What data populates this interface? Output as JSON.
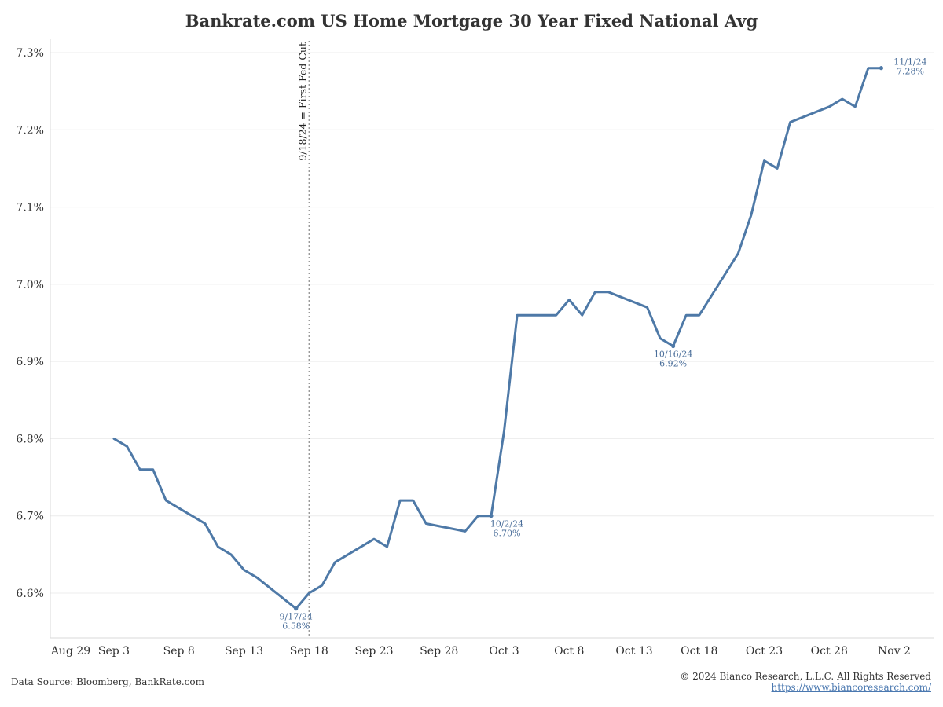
{
  "chart_data": {
    "type": "line",
    "title": "Bankrate.com US Home Mortgage 30 Year Fixed National Avg",
    "xlabel": "",
    "ylabel": "",
    "x_axis": {
      "ticks": [
        "Aug 29",
        "Sep 3",
        "Sep 8",
        "Sep 13",
        "Sep 18",
        "Sep 23",
        "Sep 28",
        "Oct 3",
        "Oct 8",
        "Oct 13",
        "Oct 18",
        "Oct 23",
        "Oct 28",
        "Nov 2"
      ]
    },
    "y_axis": {
      "ylim": [
        6.54,
        7.33
      ],
      "ticks": [
        6.6,
        6.7,
        6.8,
        6.9,
        7.0,
        7.1,
        7.2,
        7.3
      ],
      "tick_labels": [
        "6.6%",
        "6.7%",
        "6.8%",
        "6.9%",
        "7.0%",
        "7.1%",
        "7.2%",
        "7.3%"
      ]
    },
    "grid": "horizontal",
    "series": [
      {
        "color": "#4e79a7",
        "x": [
          "2024-09-03",
          "2024-09-04",
          "2024-09-05",
          "2024-09-06",
          "2024-09-07",
          "2024-09-10",
          "2024-09-11",
          "2024-09-12",
          "2024-09-13",
          "2024-09-14",
          "2024-09-17",
          "2024-09-18",
          "2024-09-19",
          "2024-09-20",
          "2024-09-23",
          "2024-09-24",
          "2024-09-25",
          "2024-09-26",
          "2024-09-27",
          "2024-09-30",
          "2024-10-01",
          "2024-10-02",
          "2024-10-03",
          "2024-10-04",
          "2024-10-07",
          "2024-10-08",
          "2024-10-09",
          "2024-10-10",
          "2024-10-11",
          "2024-10-14",
          "2024-10-15",
          "2024-10-16",
          "2024-10-17",
          "2024-10-18",
          "2024-10-21",
          "2024-10-22",
          "2024-10-23",
          "2024-10-24",
          "2024-10-25",
          "2024-10-28",
          "2024-10-29",
          "2024-10-30",
          "2024-10-31",
          "2024-11-01"
        ],
        "values": [
          6.8,
          6.79,
          6.76,
          6.76,
          6.72,
          6.69,
          6.66,
          6.65,
          6.63,
          6.62,
          6.58,
          6.6,
          6.61,
          6.64,
          6.67,
          6.66,
          6.72,
          6.72,
          6.69,
          6.68,
          6.7,
          6.7,
          6.81,
          6.96,
          6.96,
          6.98,
          6.96,
          6.99,
          6.99,
          6.97,
          6.93,
          6.92,
          6.96,
          6.96,
          7.04,
          7.09,
          7.16,
          7.15,
          7.21,
          7.23,
          7.24,
          7.23,
          7.28,
          7.28
        ]
      }
    ],
    "annotations": [
      {
        "date": "9/17/24",
        "value": "6.58%"
      },
      {
        "date": "10/2/24",
        "value": "6.70%"
      },
      {
        "date": "10/16/24",
        "value": "6.92%"
      },
      {
        "date": "11/1/24",
        "value": "7.28%"
      }
    ],
    "vline": {
      "x": "2024-09-18",
      "label": "9/18/24 = First Fed Cut"
    }
  },
  "footer": {
    "source": "Data Source: Bloomberg, BankRate.com",
    "copyright": "© 2024 Bianco Research, L.L.C. All Rights Reserved",
    "link": "https://www.biancoresearch.com/"
  }
}
